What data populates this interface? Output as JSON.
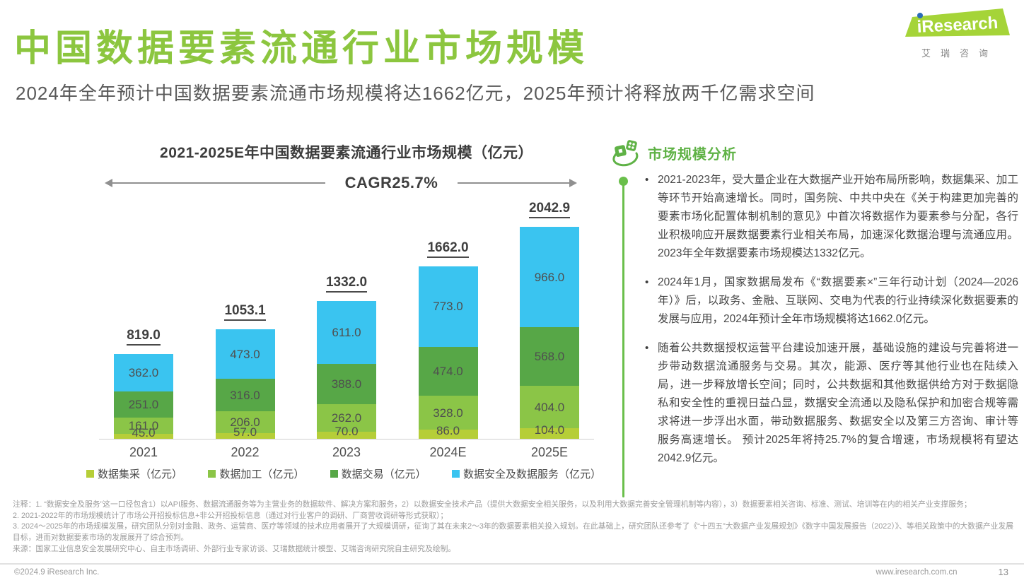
{
  "logo": {
    "brand": "iResearch",
    "brand_cn": "艾瑞咨询",
    "brand_color": "#a5d438",
    "dot_color": "#2b6cb8"
  },
  "header": {
    "title": "中国数据要素流通行业市场规模",
    "subtitle": "2024年全年预计中国数据要素流通市场规模将达1662亿元，2025年预计将释放两千亿需求空间"
  },
  "chart_data": {
    "type": "bar",
    "stacked": true,
    "title": "2021-2025E年中国数据要素流通行业市场规模（亿元）",
    "cagr_label": "CAGR25.7%",
    "categories": [
      "2021",
      "2022",
      "2023",
      "2024E",
      "2025E"
    ],
    "series": [
      {
        "name": "数据集采（亿元）",
        "color": "#b6ce38",
        "values": [
          45.0,
          57.0,
          70.0,
          86.0,
          104.0
        ]
      },
      {
        "name": "数据加工（亿元）",
        "color": "#8bc547",
        "values": [
          161.0,
          206.0,
          262.0,
          328.0,
          404.0
        ]
      },
      {
        "name": "数据交易（亿元）",
        "color": "#57a747",
        "values": [
          251.0,
          316.0,
          388.0,
          474.0,
          568.0
        ]
      },
      {
        "name": "数据安全及数据服务（亿元）",
        "color": "#3ac4f0",
        "values": [
          362.0,
          473.0,
          611.0,
          773.0,
          966.0
        ]
      }
    ],
    "totals": [
      819.0,
      1053.1,
      1332.0,
      1662.0,
      2042.9
    ],
    "ylim": [
      0,
      2100
    ],
    "grid": false,
    "legend_position": "bottom",
    "xlabel": "",
    "ylabel": "亿元"
  },
  "analysis": {
    "heading": "市场规模分析",
    "bullets": [
      "2021-2023年，受大量企业在大数据产业开始布局所影响，数据集采、加工等环节开始高速增长。同时，国务院、中共中央在《关于构建更加完善的要素市场化配置体制机制的意见》中首次将数据作为要素参与分配，各行业积极响应开展数据要素行业相关布局，加速深化数据治理与流通应用。2023年全年数据要素市场规模达1332亿元。",
      "2024年1月，国家数据局发布《“数据要素×”三年行动计划（2024—2026年）》后，以政务、金融、互联网、交电为代表的行业持续深化数据要素的发展与应用，2024年预计全年市场规模将达1662.0亿元。",
      "随着公共数据授权运营平台建设加速开展，基础设施的建设与完善将进一步带动数据流通服务与交易。其次，能源、医疗等其他行业也在陆续入局，进一步释放增长空间；同时，公共数据和其他数据供给方对于数据隐私和安全性的重视日益凸显，数据安全流通以及隐私保护和加密合规等需求将进一步浮出水面，带动数据服务、数据安全以及第三方咨询、审计等服务高速增长。 预计2025年将持25.7%的复合增速，市场规模将有望达2042.9亿元。"
    ]
  },
  "notes": {
    "lines": [
      "注释：1. “数据安全及服务”这一口径包含1）以API服务、数据流通服务等为主营业务的数据软件、解决方案和服务，2）以数据安全技术产品（提供大数据安全相关服务，以及利用大数据完善安全管理机制等内容），3）数据要素相关咨询、标准、测试、培训等在内的相关产业支撑服务；",
      "2. 2021-2022年的市场规模统计了市场公开招投标信息+非公开招投标信息（通过对行业客户的调研、厂商营收调研等形式获取）；",
      "3. 2024～2025年的市场规模发展，研究团队分别对金融、政务、运营商、医疗等领域的技术应用者展开了大规模调研，征询了其在未来2～3年的数据要素相关投入规划。在此基础上，研究团队还参考了《“十四五”大数据产业发展规划》《数字中国发展报告（2022）》、等相关政策中的大数据产业发展目标，进而对数据要素市场的发展展开了综合预判。",
      "来源：国家工业信息安全发展研究中心、自主市场调研、外部行业专家访谈、艾瑞数据统计模型、艾瑞咨询研究院自主研究及绘制。"
    ]
  },
  "footer": {
    "copyright": "©2024.9 iResearch Inc.",
    "website": "www.iresearch.com.cn",
    "page": "13"
  }
}
